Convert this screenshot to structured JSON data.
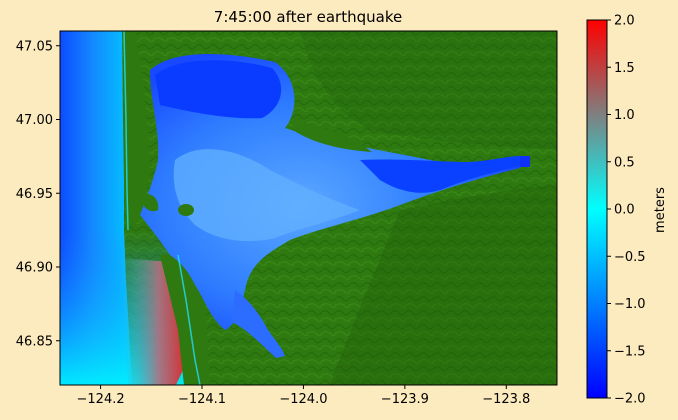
{
  "title": "7:45:00 after earthquake",
  "map": {
    "x_ticks": [
      "−124.2",
      "−124.1",
      "−124.0",
      "−123.9",
      "−123.8"
    ],
    "x_values": [
      -124.2,
      -124.1,
      -124.0,
      -123.9,
      -123.8
    ],
    "xlim": [
      -124.24,
      -123.75
    ],
    "y_ticks": [
      "47.05",
      "47.00",
      "46.95",
      "46.90",
      "46.85"
    ],
    "y_values": [
      47.05,
      47.0,
      46.95,
      46.9,
      46.85
    ],
    "ylim": [
      46.82,
      47.06
    ],
    "colors": {
      "land": "#2e7a10",
      "land_dark": "#1f5c0a",
      "water_deep": "#0a2cff",
      "water_mid": "#2a7bff",
      "water_light": "#00f2ff",
      "anomaly": "#d8282e"
    }
  },
  "colorbar": {
    "label": "meters",
    "ticks": [
      "2.0",
      "1.5",
      "1.0",
      "0.5",
      "0.0",
      "−0.5",
      "−1.0",
      "−1.5",
      "−2.0"
    ],
    "values": [
      2.0,
      1.5,
      1.0,
      0.5,
      0.0,
      -0.5,
      -1.0,
      -1.5,
      -2.0
    ],
    "range": [
      -2.0,
      2.0
    ],
    "colors": [
      "#0000ff",
      "#00ffff",
      "#ff0000"
    ]
  }
}
